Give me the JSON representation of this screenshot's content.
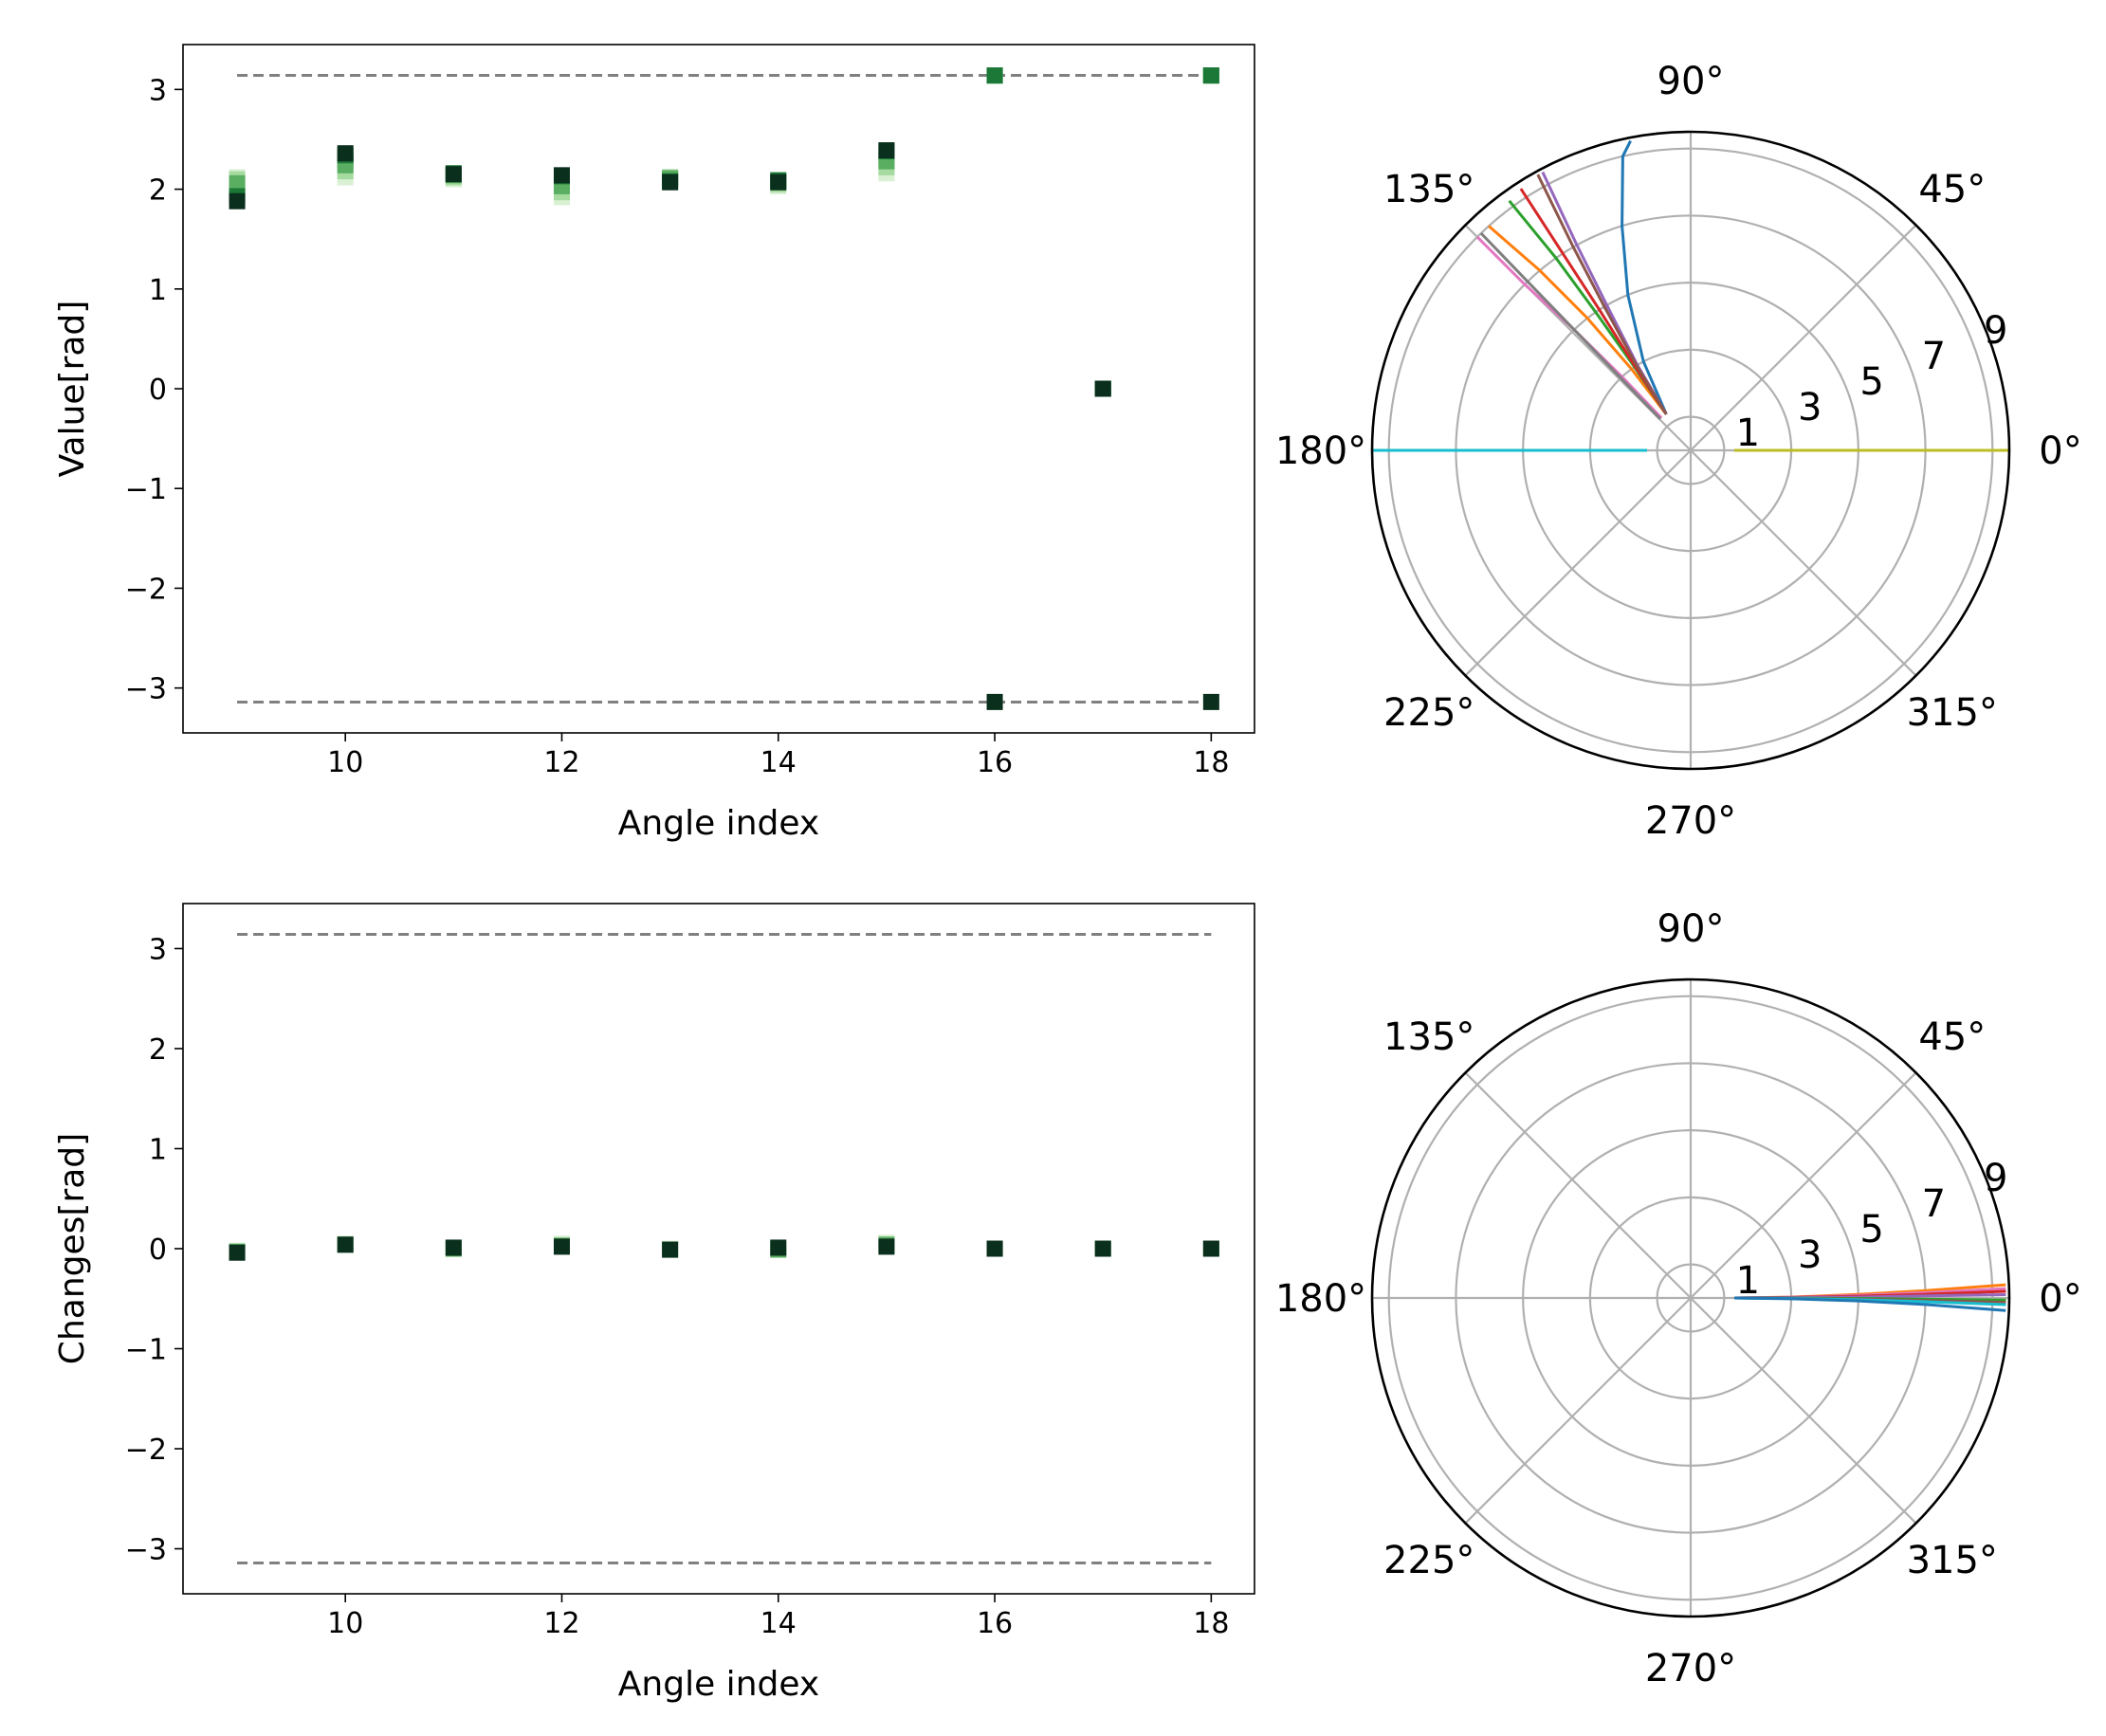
{
  "chart_data": [
    {
      "type": "scatter",
      "panel": "top-left",
      "xlabel": "Angle index",
      "ylabel": "Value[rad]",
      "xlim": [
        8.5,
        18.4
      ],
      "ylim": [
        -3.45,
        3.45
      ],
      "xticks": [
        10,
        12,
        14,
        16,
        18
      ],
      "yticks": [
        -3,
        -2,
        -1,
        0,
        1,
        2,
        3
      ],
      "bounds": [
        3.14159,
        -3.14159
      ],
      "bound_range": [
        9,
        18
      ],
      "marker": "square",
      "colormap": [
        "#d9f0d3",
        "#a6dba0",
        "#5aae61",
        "#1b7837",
        "#0a2f1c"
      ],
      "series": [
        {
          "values": [
            2.12,
            2.12,
            2.1,
            1.92,
            2.12,
            2.03,
            2.16,
            3.14,
            0.0,
            3.14
          ]
        },
        {
          "values": [
            2.1,
            2.18,
            2.12,
            1.97,
            2.12,
            2.05,
            2.22,
            3.14,
            0.0,
            3.14
          ]
        },
        {
          "values": [
            2.06,
            2.24,
            2.14,
            2.03,
            2.11,
            2.07,
            2.28,
            3.14,
            0.0,
            3.14
          ]
        },
        {
          "values": [
            2.02,
            2.29,
            2.15,
            2.08,
            2.1,
            2.08,
            2.33,
            3.14,
            0.0,
            3.14
          ]
        },
        {
          "values": [
            1.93,
            2.34,
            2.16,
            2.13,
            2.08,
            2.09,
            2.38,
            3.14,
            0.0,
            3.14
          ]
        },
        {
          "values": [
            1.88,
            2.36,
            2.15,
            2.14,
            2.07,
            2.07,
            2.39,
            -3.14,
            0.0,
            -3.14
          ]
        }
      ],
      "x": [
        9,
        10,
        11,
        12,
        13,
        14,
        15,
        16,
        17,
        18
      ]
    },
    {
      "type": "scatter",
      "panel": "bottom-left",
      "xlabel": "Angle index",
      "ylabel": "Changes[rad]",
      "xlim": [
        8.5,
        18.4
      ],
      "ylim": [
        -3.45,
        3.45
      ],
      "xticks": [
        10,
        12,
        14,
        16,
        18
      ],
      "yticks": [
        -3,
        -2,
        -1,
        0,
        1,
        2,
        3
      ],
      "bounds": [
        3.14159,
        -3.14159
      ],
      "bound_range": [
        9,
        18
      ],
      "marker": "square",
      "colormap": [
        "#d9f0d3",
        "#a6dba0",
        "#5aae61",
        "#1b7837",
        "#0a2f1c"
      ],
      "series": [
        {
          "values": [
            -0.02,
            0.05,
            0.01,
            0.05,
            0.0,
            0.01,
            0.06,
            0.0,
            0.0,
            0.0
          ]
        },
        {
          "values": [
            -0.03,
            0.04,
            0.0,
            0.03,
            -0.01,
            -0.01,
            0.04,
            0.0,
            0.0,
            0.0
          ]
        },
        {
          "values": [
            -0.04,
            0.04,
            0.01,
            0.02,
            -0.01,
            0.01,
            0.02,
            0.0,
            0.0,
            0.0
          ]
        }
      ],
      "x": [
        9,
        10,
        11,
        12,
        13,
        14,
        15,
        16,
        17,
        18
      ]
    },
    {
      "type": "line",
      "panel": "top-right",
      "projection": "polar",
      "rlim": [
        0,
        9.5
      ],
      "rticks": [
        1,
        3,
        5,
        7,
        9
      ],
      "theta_ticks": [
        "0°",
        "45°",
        "90°",
        "135°",
        "180°",
        "225°",
        "270°",
        "315°"
      ],
      "theta_unit": "degrees",
      "series": [
        {
          "color": "#1f77b4",
          "r": [
            1.3,
            3,
            5,
            7,
            9,
            9.4
          ],
          "theta": [
            124,
            118,
            112,
            107,
            103,
            101
          ]
        },
        {
          "color": "#ff7f0e",
          "r": [
            1.3,
            3,
            5,
            7,
            9
          ],
          "theta": [
            124,
            126,
            128,
            130,
            132
          ]
        },
        {
          "color": "#2ca02c",
          "r": [
            1.3,
            3,
            5,
            7,
            9.2
          ],
          "theta": [
            124,
            124,
            124.5,
            125,
            126
          ]
        },
        {
          "color": "#d62728",
          "r": [
            1.3,
            3,
            5,
            7,
            9.3
          ],
          "theta": [
            124,
            123.5,
            123,
            123,
            123
          ]
        },
        {
          "color": "#9467bd",
          "r": [
            1.3,
            3,
            5,
            7,
            9.4
          ],
          "theta": [
            124,
            122,
            120,
            119,
            118
          ]
        },
        {
          "color": "#8c564b",
          "r": [
            1.3,
            3,
            5,
            7,
            9.4
          ],
          "theta": [
            124,
            122.5,
            121,
            120,
            119
          ]
        },
        {
          "color": "#e377c2",
          "r": [
            1.3,
            3,
            5,
            7,
            9
          ],
          "theta": [
            132,
            133,
            134,
            135,
            135
          ]
        },
        {
          "color": "#7f7f7f",
          "r": [
            1.3,
            3,
            5,
            7,
            9
          ],
          "theta": [
            134,
            134,
            134,
            134,
            134
          ]
        },
        {
          "color": "#bcbd22",
          "r": [
            1.3,
            9.5
          ],
          "theta": [
            0,
            0
          ]
        },
        {
          "color": "#17becf",
          "r": [
            1.3,
            9.5
          ],
          "theta": [
            180,
            180
          ]
        }
      ]
    },
    {
      "type": "line",
      "panel": "bottom-right",
      "projection": "polar",
      "rlim": [
        0,
        9.5
      ],
      "rticks": [
        1,
        3,
        5,
        7,
        9
      ],
      "theta_ticks": [
        "0°",
        "45°",
        "90°",
        "135°",
        "180°",
        "225°",
        "270°",
        "315°"
      ],
      "theta_unit": "degrees",
      "series": [
        {
          "color": "#ff7f0e",
          "r": [
            1.3,
            3,
            5,
            7,
            9.4
          ],
          "theta": [
            0,
            0.5,
            1.2,
            1.8,
            2.4
          ]
        },
        {
          "color": "#e377c2",
          "r": [
            1.3,
            3,
            5,
            7,
            9.4
          ],
          "theta": [
            0,
            0.4,
            0.9,
            1.3,
            1.7
          ]
        },
        {
          "color": "#d62728",
          "r": [
            1.3,
            3,
            5,
            7,
            9.4
          ],
          "theta": [
            0,
            0.3,
            0.6,
            0.9,
            1.2
          ]
        },
        {
          "color": "#9467bd",
          "r": [
            1.3,
            3,
            5,
            7,
            9.4
          ],
          "theta": [
            0,
            0.2,
            0.3,
            0.5,
            0.6
          ]
        },
        {
          "color": "#2ca02c",
          "r": [
            1.3,
            3,
            5,
            7,
            9.4
          ],
          "theta": [
            0,
            -0.1,
            -0.2,
            -0.3,
            -0.4
          ]
        },
        {
          "color": "#8c564b",
          "r": [
            1.3,
            3,
            5,
            7,
            9.4
          ],
          "theta": [
            0,
            -0.2,
            -0.4,
            -0.6,
            -0.8
          ]
        },
        {
          "color": "#17becf",
          "r": [
            1.3,
            3,
            5,
            7,
            9.4
          ],
          "theta": [
            0,
            -0.3,
            -0.6,
            -0.9,
            -1.2
          ]
        },
        {
          "color": "#1f77b4",
          "r": [
            1.3,
            3,
            5,
            7,
            9.4
          ],
          "theta": [
            0,
            -0.5,
            -1.0,
            -1.6,
            -2.3
          ]
        }
      ]
    }
  ],
  "colors": {
    "bound_line": "#808080",
    "polar_grid": "#b0b0b0",
    "axes": "#000000"
  }
}
